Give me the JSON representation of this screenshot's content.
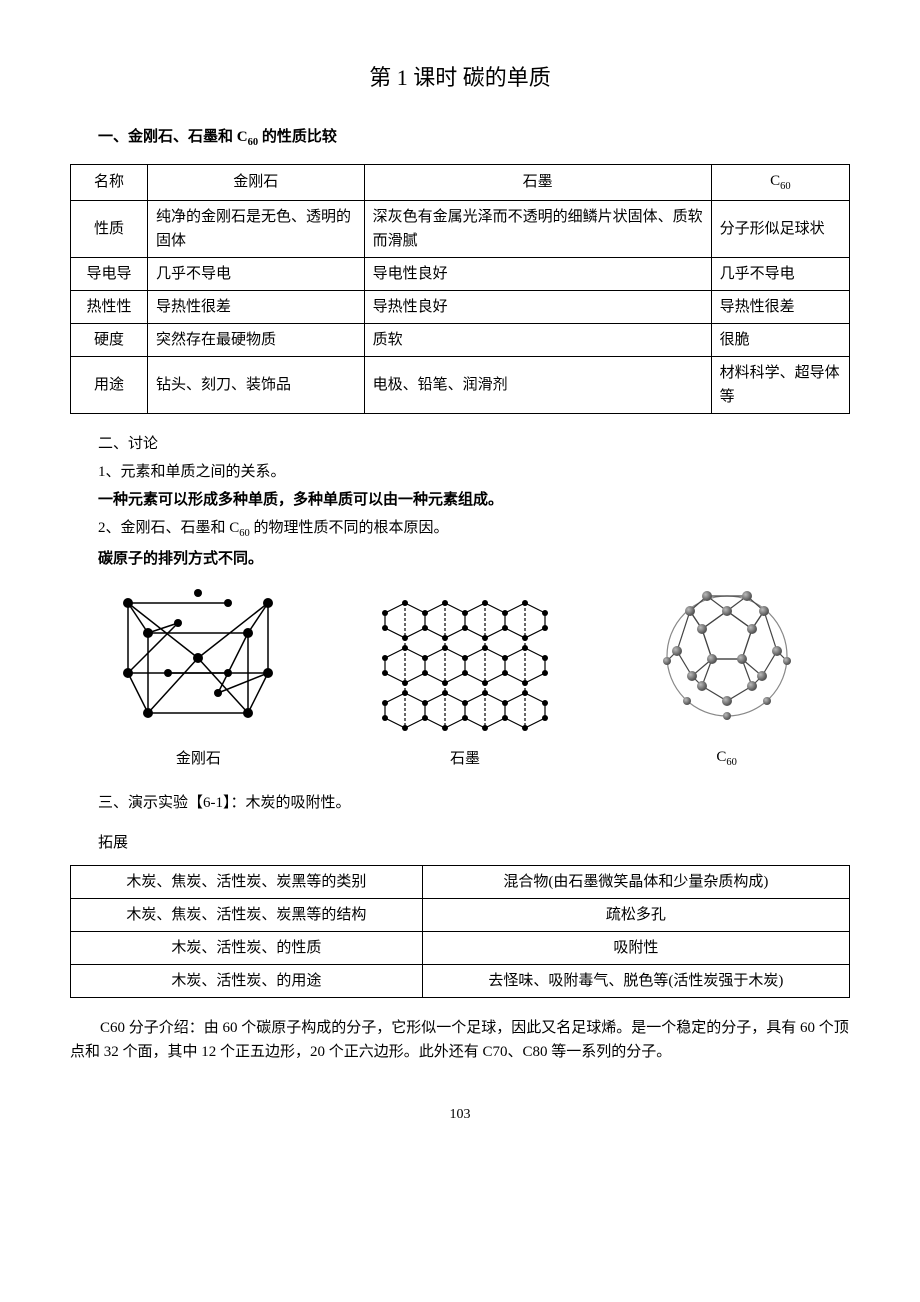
{
  "title": "第 1 课时 碳的单质",
  "section1_heading": "一、金刚石、石墨和 C₆₀ 的性质比较",
  "table1": {
    "rows": [
      [
        "名称",
        "金刚石",
        "石墨",
        "C₆₀"
      ],
      [
        "性质",
        "纯净的金刚石是无色、透明的固体",
        "深灰色有金属光泽而不透明的细鳞片状固体、质软而滑腻",
        "分子形似足球状"
      ],
      [
        "导电导",
        "几乎不导电",
        "导电性良好",
        "几乎不导电"
      ],
      [
        "热性性",
        "导热性很差",
        "导热性良好",
        "导热性很差"
      ],
      [
        "硬度",
        "突然存在最硬物质",
        "质软",
        "很脆"
      ],
      [
        "用途",
        "钻头、刻刀、装饰品",
        "电极、铅笔、润滑剂",
        "材料科学、超导体等"
      ]
    ]
  },
  "section2_heading": "二、讨论",
  "discuss": {
    "line1": "1、元素和单质之间的关系。",
    "line2": "一种元素可以形成多种单质，多种单质可以由一种元素组成。",
    "line3": "2、金刚石、石墨和 C₆₀ 的物理性质不同的根本原因。",
    "line4": "碳原子的排列方式不同。"
  },
  "figures": {
    "label1": "金刚石",
    "label2": "石墨",
    "label3": "C₆₀"
  },
  "section3_heading": "三、演示实验【6-1】：木炭的吸附性。",
  "tuozhan_label": "拓展",
  "table2": {
    "rows": [
      [
        "木炭、焦炭、活性炭、炭黑等的类别",
        "混合物(由石墨微笑晶体和少量杂质构成)"
      ],
      [
        "木炭、焦炭、活性炭、炭黑等的结构",
        "疏松多孔"
      ],
      [
        "木炭、活性炭、的性质",
        "吸附性"
      ],
      [
        "木炭、活性炭、的用途",
        "去怪味、吸附毒气、脱色等(活性炭强于木炭)"
      ]
    ]
  },
  "footer_para": "C60 分子介绍：由 60 个碳原子构成的分子，它形似一个足球，因此又名足球烯。是一个稳定的分子，具有 60 个顶点和 32 个面，其中 12 个正五边形，20 个正六边形。此外还有 C70、C80 等一系列的分子。",
  "page_number": "103"
}
